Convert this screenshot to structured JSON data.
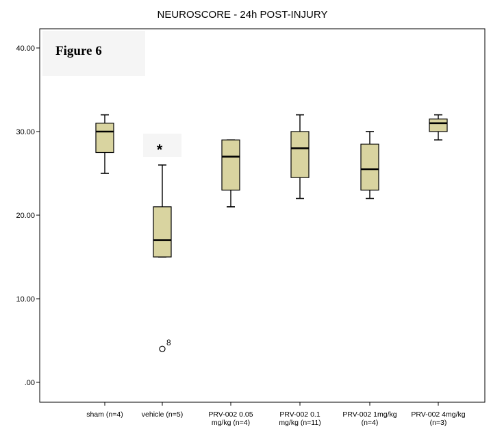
{
  "chart_data": {
    "type": "boxplot",
    "title": "NEUROSCORE - 24h POST-INJURY",
    "figure_label": "Figure 6",
    "xlabel": "",
    "ylabel": "",
    "ylim": [
      0,
      42
    ],
    "y_ticks": [
      ".00",
      "10.00",
      "20.00",
      "30.00",
      "40.00"
    ],
    "y_tick_values": [
      0,
      10,
      20,
      30,
      40
    ],
    "grid": false,
    "box_color": "#d9d4a0",
    "categories": [
      {
        "label_lines": [
          "sham (n=4)"
        ],
        "min": 25,
        "q1": 27.5,
        "median": 30,
        "q3": 31,
        "max": 32
      },
      {
        "label_lines": [
          "vehicle (n=5)"
        ],
        "min": 15,
        "q1": 15,
        "median": 17,
        "q3": 21,
        "max": 26,
        "outliers": [
          {
            "value": 4,
            "label": "8"
          }
        ],
        "significance": "*",
        "significance_value": 28.2
      },
      {
        "label_lines": [
          "PRV-002 0.05",
          "mg/kg (n=4)"
        ],
        "min": 21,
        "q1": 23,
        "median": 27,
        "q3": 29,
        "max": 29
      },
      {
        "label_lines": [
          "PRV-002 0.1",
          "mg/kg (n=11)"
        ],
        "min": 22,
        "q1": 24.5,
        "median": 28,
        "q3": 30,
        "max": 32
      },
      {
        "label_lines": [
          "PRV-002 1mg/kg",
          "(n=4)"
        ],
        "min": 22,
        "q1": 23,
        "median": 25.5,
        "q3": 28.5,
        "max": 30
      },
      {
        "label_lines": [
          "PRV-002 4mg/kg",
          "(n=3)"
        ],
        "min": 29,
        "q1": 30,
        "median": 31,
        "q3": 31.5,
        "max": 32
      }
    ]
  }
}
